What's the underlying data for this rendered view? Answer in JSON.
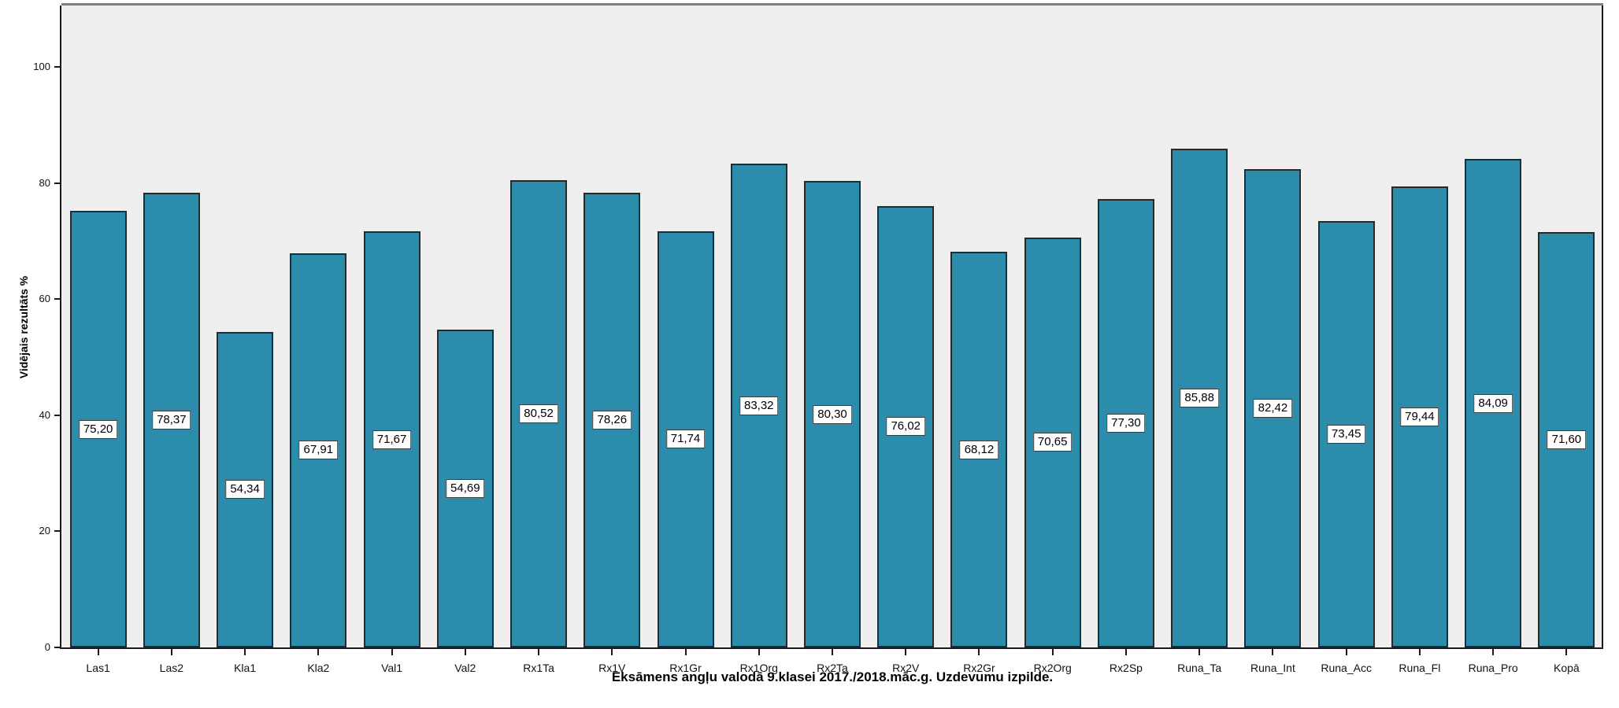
{
  "chart_data": {
    "type": "bar",
    "title": "Eksāmens angļu valodā 9.klasei 2017./2018.māc.g. Uzdevumu izpilde.",
    "xlabel": "",
    "ylabel": "Vidējais rezultāts %",
    "categories": [
      "Las1",
      "Las2",
      "Kla1",
      "Kla2",
      "Val1",
      "Val2",
      "Rx1Ta",
      "Rx1V",
      "Rx1Gr",
      "Rx1Org",
      "Rx2Ta",
      "Rx2V",
      "Rx2Gr",
      "Rx2Org",
      "Rx2Sp",
      "Runa_Ta",
      "Runa_Int",
      "Runa_Acc",
      "Runa_Fl",
      "Runa_Pro",
      "Kopā"
    ],
    "values": [
      75.2,
      78.37,
      54.34,
      67.91,
      71.67,
      54.69,
      80.52,
      78.26,
      71.74,
      83.32,
      80.3,
      76.02,
      68.12,
      70.65,
      77.3,
      85.88,
      82.42,
      73.45,
      79.44,
      84.09,
      71.6
    ],
    "value_labels": [
      "75,20",
      "78,37",
      "54,34",
      "67,91",
      "71,67",
      "54,69",
      "80,52",
      "78,26",
      "71,74",
      "83,32",
      "80,30",
      "76,02",
      "68,12",
      "70,65",
      "77,30",
      "85,88",
      "82,42",
      "73,45",
      "79,44",
      "84,09",
      "71,60"
    ],
    "yticks": [
      0,
      20,
      40,
      60,
      80,
      100
    ],
    "ylim": [
      0,
      110.5
    ],
    "grid": false,
    "legend": "none",
    "bar_color": "#2b8cab",
    "bar_border_color": "#1f2c33",
    "plot_background_color": "#efefef"
  }
}
